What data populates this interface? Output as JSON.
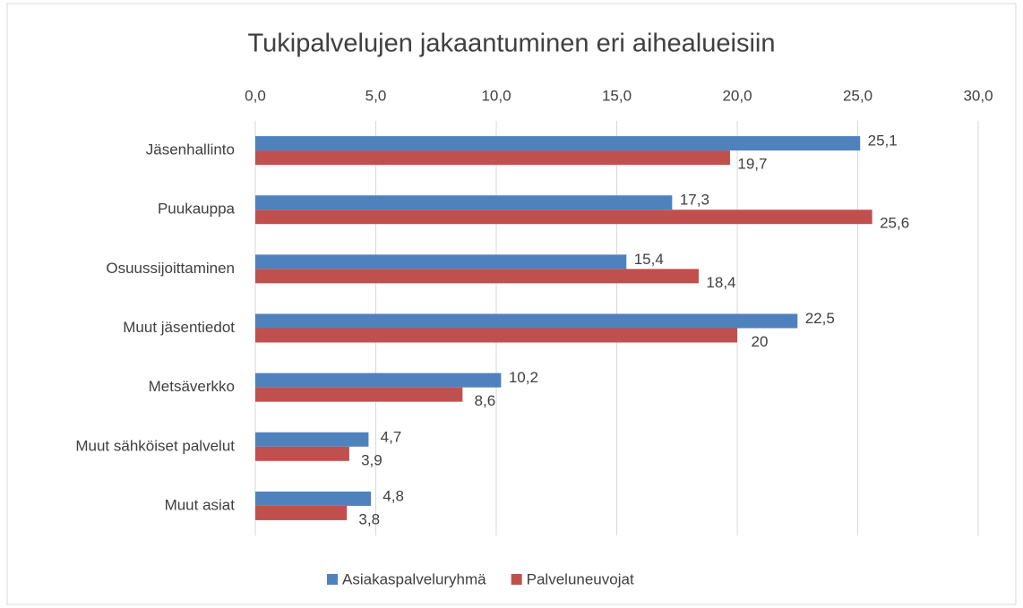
{
  "chart_data": {
    "type": "hbar",
    "title": "Tukipalvelujen jakaantuminen eri aihealueisiin",
    "categories": [
      "Jäsenhallinto",
      "Puukauppa",
      "Osuussijoittaminen",
      "Muut jäsentiedot",
      "Metsäverkko",
      "Muut sähköiset palvelut",
      "Muut asiat"
    ],
    "series": [
      {
        "name": "Asiakaspalveluryhmä",
        "color": "#4f81bd",
        "values": [
          25.1,
          17.3,
          15.4,
          22.5,
          10.2,
          4.7,
          4.8
        ],
        "value_labels": [
          "25,1",
          "17,3",
          "15,4",
          "22,5",
          "10,2",
          "4,7",
          "4,8"
        ]
      },
      {
        "name": "Palveluneuvojat",
        "color": "#c0504d",
        "values": [
          19.7,
          25.6,
          18.4,
          20,
          8.6,
          3.9,
          3.8
        ],
        "value_labels": [
          "19,7",
          "25,6",
          "18,4",
          "20",
          "8,6",
          "3,9",
          "3,8"
        ]
      }
    ],
    "xlim": [
      0,
      30
    ],
    "xticks": [
      {
        "value": 0,
        "label": "0,0"
      },
      {
        "value": 5,
        "label": "5,0"
      },
      {
        "value": 10,
        "label": "10,0"
      },
      {
        "value": 15,
        "label": "15,0"
      },
      {
        "value": 20,
        "label": "20,0"
      },
      {
        "value": 25,
        "label": "25,0"
      },
      {
        "value": 30,
        "label": "30,0"
      }
    ],
    "grid": true,
    "legend": "bottom"
  }
}
